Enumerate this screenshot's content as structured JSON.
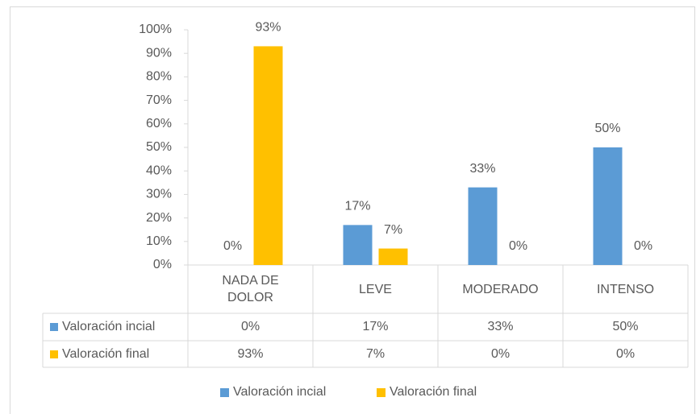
{
  "chart_data": {
    "type": "bar",
    "categories": [
      "NADA DE DOLOR",
      "LEVE",
      "MODERADO",
      "INTENSO"
    ],
    "series": [
      {
        "name": "Valoración incial",
        "color": "#5b9bd5",
        "values": [
          0,
          17,
          33,
          50
        ],
        "value_labels": [
          "0%",
          "17%",
          "33%",
          "50%"
        ]
      },
      {
        "name": "Valoración final",
        "color": "#ffc000",
        "values": [
          93,
          7,
          0,
          0
        ],
        "value_labels": [
          "93%",
          "7%",
          "0%",
          "0%"
        ]
      }
    ],
    "ylim": [
      0,
      100
    ],
    "yticks": [
      {
        "value": 0,
        "label": "0%"
      },
      {
        "value": 10,
        "label": "10%"
      },
      {
        "value": 20,
        "label": "20%"
      },
      {
        "value": 30,
        "label": "30%"
      },
      {
        "value": 40,
        "label": "40%"
      },
      {
        "value": 50,
        "label": "50%"
      },
      {
        "value": 60,
        "label": "60%"
      },
      {
        "value": 70,
        "label": "70%"
      },
      {
        "value": 80,
        "label": "80%"
      },
      {
        "value": 90,
        "label": "90%"
      },
      {
        "value": 100,
        "label": "100%"
      }
    ],
    "grid": false,
    "data_table": true,
    "legend": "bottom"
  }
}
